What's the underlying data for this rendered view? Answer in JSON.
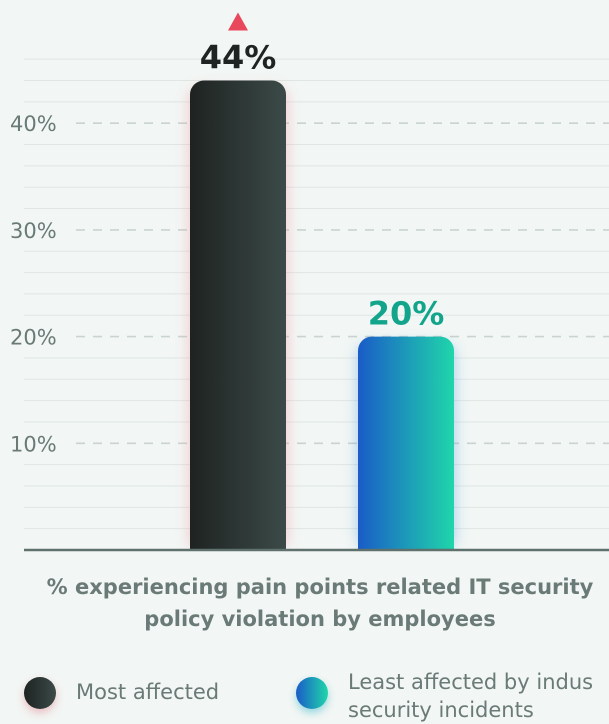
{
  "chart_data": {
    "type": "bar",
    "categories": [
      "Most affected",
      "Least affected by industry security incidents"
    ],
    "values": [
      44,
      20
    ],
    "value_labels": [
      "44%",
      "20%"
    ],
    "value_label_colors": [
      "#1f2321",
      "#12a58c"
    ],
    "bar_gradients": [
      [
        "#1e2321",
        "#3b4a48"
      ],
      [
        "#1a5cc8",
        "#1fd6aa"
      ]
    ],
    "y_ticks": [
      10,
      20,
      30,
      40
    ],
    "y_tick_labels": [
      "10%",
      "20%",
      "30%",
      "40%"
    ],
    "ylim": [
      0,
      46
    ],
    "grid": true,
    "legend_position": "bottom",
    "highlight_marker": "up-triangle",
    "highlight_marker_color": "#e8475c",
    "caption_line1": "% experiencing pain points related IT security",
    "caption_line2": "policy violation by employees",
    "legend": [
      {
        "label_lines": [
          "Most affected"
        ]
      },
      {
        "label_lines": [
          "Least affected by indus",
          "security incidents"
        ]
      }
    ]
  }
}
